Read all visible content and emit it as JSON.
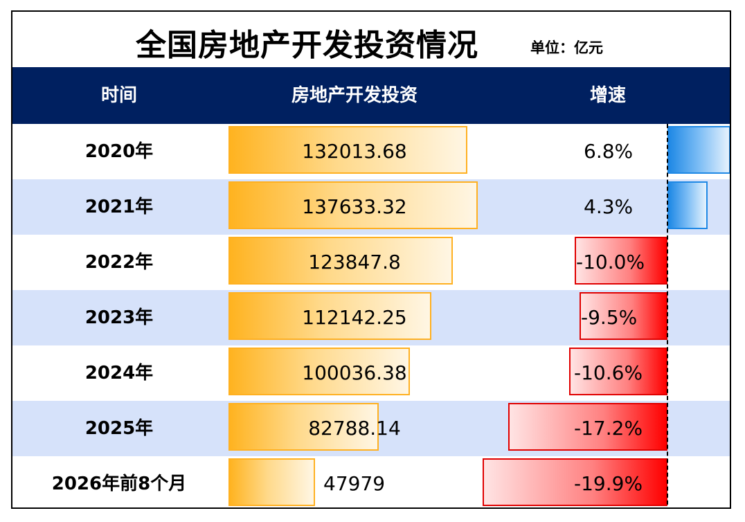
{
  "title": "全国房地产开发投资情况",
  "unit": "单位：亿元",
  "header": {
    "col_time": "时间",
    "col_investment": "房地产开发投资",
    "col_growth": "增速"
  },
  "colors": {
    "header_bg": "#002060",
    "row_alt_bg": "#d6e2fa",
    "investment_bar": "#ffb320",
    "growth_positive": "#1e88e5",
    "growth_negative": "#ff0000"
  },
  "chart_data": {
    "type": "table",
    "columns": [
      "时间",
      "房地产开发投资",
      "增速"
    ],
    "rows": [
      {
        "time": "2020年",
        "investment": 132013.68,
        "investment_label": "132013.68",
        "growth": 6.8,
        "growth_label": "6.8%"
      },
      {
        "time": "2021年",
        "investment": 137633.32,
        "investment_label": "137633.32",
        "growth": 4.3,
        "growth_label": "4.3%"
      },
      {
        "time": "2022年",
        "investment": 123847.8,
        "investment_label": "123847.8",
        "growth": -10.0,
        "growth_label": "-10.0%"
      },
      {
        "time": "2023年",
        "investment": 112142.25,
        "investment_label": "112142.25",
        "growth": -9.5,
        "growth_label": "-9.5%"
      },
      {
        "time": "2024年",
        "investment": 100036.38,
        "investment_label": "100036.38",
        "growth": -10.6,
        "growth_label": "-10.6%"
      },
      {
        "time": "2025年",
        "investment": 82788.14,
        "investment_label": "82788.14",
        "growth": -17.2,
        "growth_label": "-17.2%"
      },
      {
        "time": "2026年前8个月",
        "investment": 47979,
        "investment_label": "47979",
        "growth": -19.9,
        "growth_label": "-19.9%"
      }
    ]
  }
}
